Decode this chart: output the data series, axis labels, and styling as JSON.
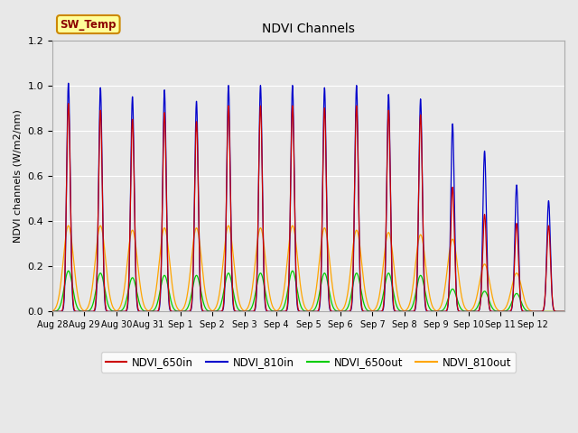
{
  "title": "NDVI Channels",
  "ylabel": "NDVI channels (W/m2/nm)",
  "ylim": [
    0,
    1.2
  ],
  "facecolor": "#e8e8e8",
  "sw_temp_label": "SW_Temp",
  "legend_entries": [
    "NDVI_650in",
    "NDVI_810in",
    "NDVI_650out",
    "NDVI_810out"
  ],
  "line_colors": [
    "#cc0000",
    "#0000cc",
    "#00cc00",
    "#ffa500"
  ],
  "xtick_labels": [
    "Aug 28",
    "Aug 29",
    "Aug 30",
    "Aug 31",
    "Sep 1",
    "Sep 2",
    "Sep 3",
    "Sep 4",
    "Sep 5",
    "Sep 6",
    "Sep 7",
    "Sep 8",
    "Sep 9",
    "Sep 10",
    "Sep 11",
    "Sep 12"
  ],
  "peak_810in": [
    1.01,
    0.99,
    0.95,
    0.98,
    0.93,
    1.0,
    1.0,
    1.0,
    0.99,
    1.0,
    0.96,
    0.94,
    0.83,
    0.71,
    0.56,
    0.49
  ],
  "peak_650in": [
    0.92,
    0.89,
    0.85,
    0.88,
    0.84,
    0.91,
    0.91,
    0.91,
    0.9,
    0.91,
    0.89,
    0.87,
    0.55,
    0.43,
    0.39,
    0.38
  ],
  "peak_810out": [
    0.38,
    0.38,
    0.36,
    0.37,
    0.37,
    0.38,
    0.37,
    0.38,
    0.37,
    0.36,
    0.35,
    0.34,
    0.32,
    0.21,
    0.17,
    0.0
  ],
  "peak_650out": [
    0.18,
    0.17,
    0.15,
    0.16,
    0.16,
    0.17,
    0.17,
    0.18,
    0.17,
    0.17,
    0.17,
    0.16,
    0.1,
    0.09,
    0.08,
    0.0
  ],
  "n_days": 16,
  "pts_per_day": 200
}
